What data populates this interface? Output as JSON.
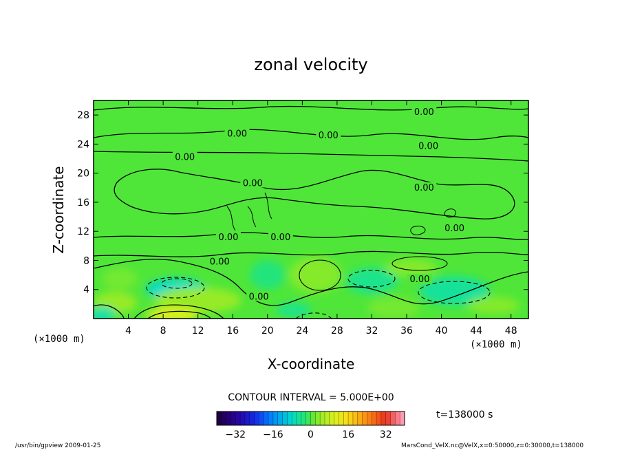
{
  "chart_data": {
    "type": "heatmap",
    "title": "zonal velocity",
    "xlabel": "X-coordinate",
    "ylabel": "Z-coordinate",
    "x_unit_left": "(×1000 m)",
    "x_unit_right": "(×1000 m)",
    "xlim": [
      0,
      50
    ],
    "ylim": [
      0,
      30
    ],
    "x_ticks": [
      4,
      8,
      12,
      16,
      20,
      24,
      28,
      32,
      36,
      40,
      44,
      48
    ],
    "y_ticks": [
      4,
      8,
      12,
      16,
      20,
      24,
      28
    ],
    "contour_interval_text": "CONTOUR INTERVAL = 5.000E+00",
    "time_text": "t=138000 s",
    "colorbar": {
      "range": [
        -40,
        40
      ],
      "tick_values": [
        -32,
        -16,
        0,
        16,
        32
      ],
      "tick_labels": [
        "−32",
        "−16",
        "0",
        "16",
        "32"
      ]
    },
    "contour_labels": [
      {
        "text": "0.00",
        "x": 16.5,
        "z": 25.2
      },
      {
        "text": "0.00",
        "x": 27.0,
        "z": 25.0
      },
      {
        "text": "0.00",
        "x": 38.0,
        "z": 28.2
      },
      {
        "text": "0.00",
        "x": 38.5,
        "z": 23.5
      },
      {
        "text": "0.00",
        "x": 10.5,
        "z": 22.0
      },
      {
        "text": "0.00",
        "x": 18.3,
        "z": 18.4
      },
      {
        "text": "0.00",
        "x": 38.0,
        "z": 17.8
      },
      {
        "text": "0.00",
        "x": 41.5,
        "z": 12.2
      },
      {
        "text": "0.00",
        "x": 15.5,
        "z": 11.0
      },
      {
        "text": "0.00",
        "x": 21.5,
        "z": 11.0
      },
      {
        "text": "0.00",
        "x": 14.5,
        "z": 7.6
      },
      {
        "text": "0.00",
        "x": 37.5,
        "z": 5.2
      },
      {
        "text": "0.00",
        "x": 19.0,
        "z": 2.8
      }
    ],
    "regions": [
      {
        "x": 9.5,
        "z": 4.0,
        "rx": 3.5,
        "rz": 1.5,
        "value": -8
      },
      {
        "x": 12.0,
        "z": 2.5,
        "rx": 5.0,
        "rz": 1.8,
        "value": 4
      },
      {
        "x": 9.0,
        "z": 0.5,
        "rx": 3.0,
        "rz": 1.0,
        "value": 10
      },
      {
        "x": 2.5,
        "z": 2.2,
        "rx": 2.5,
        "rz": 1.5,
        "value": 4
      },
      {
        "x": 25.5,
        "z": 6.0,
        "rx": 3.0,
        "rz": 2.5,
        "value": 3
      },
      {
        "x": 20.0,
        "z": 6.0,
        "rx": 2.0,
        "rz": 2.0,
        "value": -3
      },
      {
        "x": 32.0,
        "z": 5.2,
        "rx": 3.0,
        "rz": 1.8,
        "value": -4
      },
      {
        "x": 36.5,
        "z": 7.0,
        "rx": 3.0,
        "rz": 1.2,
        "value": 3
      },
      {
        "x": 41.5,
        "z": 3.8,
        "rx": 4.0,
        "rz": 2.0,
        "value": -5
      },
      {
        "x": 46.0,
        "z": 1.8,
        "rx": 3.0,
        "rz": 1.2,
        "value": 3
      },
      {
        "x": 34.5,
        "z": 1.5,
        "rx": 3.0,
        "rz": 1.5,
        "value": 2
      },
      {
        "x": 3.0,
        "z": 5.5,
        "rx": 2.0,
        "rz": 1.5,
        "value": 2
      },
      {
        "x": 1.0,
        "z": 0.6,
        "rx": 1.5,
        "rz": 1.0,
        "value": -6
      },
      {
        "x": 23.0,
        "z": 1.2,
        "rx": 2.0,
        "rz": 1.0,
        "value": -4
      }
    ]
  },
  "footer": {
    "left_text": "/usr/bin/gpview   2009-01-25",
    "right_text": "MarsCond_VelX.nc@VelX,x=0:50000,z=0:30000,t=138000"
  }
}
